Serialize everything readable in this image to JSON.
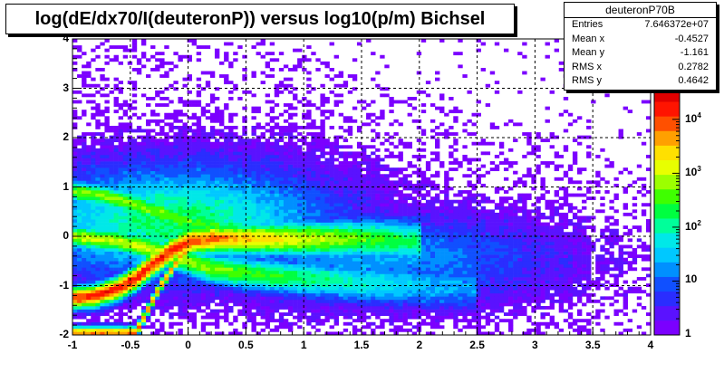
{
  "title": "log(dE/dx70/I(deuteronP)) versus log10(p/m) Bichsel",
  "stats": {
    "name": "deuteronP70B",
    "rows": [
      {
        "label": "Entries",
        "value": "7.646372e+07"
      },
      {
        "label": "Mean x",
        "value": "-0.4527"
      },
      {
        "label": "Mean y",
        "value": "-1.161"
      },
      {
        "label": "RMS x",
        "value": "0.2782"
      },
      {
        "label": "RMS y",
        "value": "0.4642"
      }
    ]
  },
  "chart_data": {
    "type": "heatmap",
    "title": "log(dE/dx70/I(deuteronP)) versus log10(p/m) Bichsel",
    "xlabel": "",
    "ylabel": "",
    "xlim": [
      -1,
      4
    ],
    "ylim": [
      -2,
      4
    ],
    "x_ticks": [
      "-1",
      "-0.5",
      "0",
      "0.5",
      "1",
      "1.5",
      "2",
      "2.5",
      "3",
      "3.5",
      "4"
    ],
    "y_ticks": [
      "-2",
      "-1",
      "0",
      "1",
      "2",
      "3",
      "4"
    ],
    "grid": true,
    "z_scale": "log",
    "z_range": [
      1,
      40000
    ],
    "colorbar_ticks": [
      "1",
      "10",
      "10^2",
      "10^3",
      "10^4"
    ],
    "bands": [
      {
        "name": "band-low",
        "points": [
          [
            -1.0,
            -1.25
          ],
          [
            -0.8,
            -1.2
          ],
          [
            -0.6,
            -1.05
          ],
          [
            -0.45,
            -0.85
          ],
          [
            -0.3,
            -0.55
          ],
          [
            -0.15,
            -0.3
          ],
          [
            0.0,
            -0.1
          ],
          [
            0.2,
            -0.05
          ],
          [
            0.5,
            -0.05
          ],
          [
            1.0,
            -0.05
          ],
          [
            1.5,
            -0.05
          ],
          [
            2.0,
            -0.1
          ]
        ],
        "peak": 4.2
      },
      {
        "name": "band-mid",
        "points": [
          [
            -1.0,
            0.0
          ],
          [
            -0.8,
            -0.05
          ],
          [
            -0.6,
            -0.1
          ],
          [
            -0.4,
            -0.2
          ],
          [
            -0.2,
            -0.35
          ],
          [
            0.0,
            -0.5
          ],
          [
            0.2,
            -0.65
          ],
          [
            0.5,
            -0.75
          ],
          [
            1.0,
            -0.85
          ],
          [
            1.5,
            -0.95
          ],
          [
            2.0,
            -1.0
          ],
          [
            2.5,
            -1.05
          ]
        ],
        "peak": 3.0
      },
      {
        "name": "band-steep",
        "points": [
          [
            -0.45,
            -1.95
          ],
          [
            -0.35,
            -1.5
          ],
          [
            -0.25,
            -1.05
          ],
          [
            -0.15,
            -0.7
          ],
          [
            -0.05,
            -0.35
          ],
          [
            0.05,
            -0.15
          ],
          [
            0.2,
            0.0
          ]
        ],
        "peak": 3.8
      },
      {
        "name": "band-high",
        "points": [
          [
            -1.0,
            0.9
          ],
          [
            -0.8,
            0.85
          ],
          [
            -0.6,
            0.75
          ],
          [
            -0.4,
            0.6
          ],
          [
            -0.2,
            0.45
          ],
          [
            0.0,
            0.3
          ],
          [
            0.3,
            0.15
          ],
          [
            0.7,
            0.05
          ],
          [
            1.2,
            -0.05
          ],
          [
            1.8,
            -0.15
          ]
        ],
        "peak": 2.7
      }
    ]
  },
  "colors": {
    "palette": [
      "#7b00ff",
      "#5a12ff",
      "#2a2dff",
      "#1050ff",
      "#0090ff",
      "#00c8ff",
      "#00e8e8",
      "#00ff9a",
      "#00ff40",
      "#3fff00",
      "#9cff00",
      "#e8ff00",
      "#ffe000",
      "#ffa000",
      "#ff5000",
      "#ff1400",
      "#e00000"
    ]
  }
}
